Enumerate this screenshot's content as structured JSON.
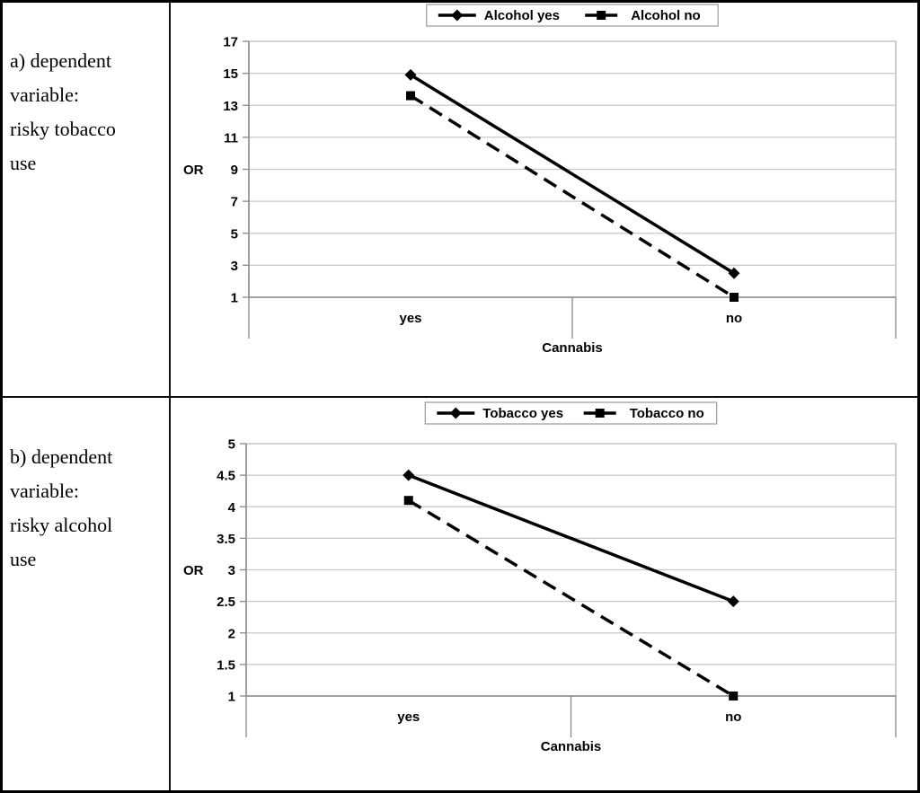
{
  "panels": [
    {
      "label": "a) dependent\nvariable:\nrisky tobacco\nuse"
    },
    {
      "label": "b) dependent\nvariable:\nrisky alcohol\nuse"
    }
  ],
  "colors": {
    "series_line": "#000000",
    "gridline": "#c8c8c8",
    "axis": "#888888",
    "frame": "#b4b4b4",
    "legend_border": "#999999",
    "text": "#000000"
  },
  "chart_data": [
    {
      "type": "line",
      "title": "",
      "categories": [
        "yes",
        "no"
      ],
      "xlabel": "Cannabis",
      "ylabel": "OR",
      "ylim": [
        1,
        17
      ],
      "yticks": [
        1,
        3,
        5,
        7,
        9,
        11,
        13,
        15,
        17
      ],
      "grid": true,
      "legend_position": "top",
      "series": [
        {
          "name": "Alcohol yes",
          "values": [
            14.9,
            2.5
          ],
          "line": "solid",
          "marker": "diamond"
        },
        {
          "name": "Alcohol no",
          "values": [
            13.6,
            1.0
          ],
          "line": "dashed",
          "marker": "square"
        }
      ]
    },
    {
      "type": "line",
      "title": "",
      "categories": [
        "yes",
        "no"
      ],
      "xlabel": "Cannabis",
      "ylabel": "OR",
      "ylim": [
        1,
        5
      ],
      "yticks": [
        1,
        1.5,
        2,
        2.5,
        3,
        3.5,
        4,
        4.5,
        5
      ],
      "grid": true,
      "legend_position": "top",
      "series": [
        {
          "name": "Tobacco yes",
          "values": [
            4.5,
            2.5
          ],
          "line": "solid",
          "marker": "diamond"
        },
        {
          "name": "Tobacco no",
          "values": [
            4.1,
            1.0
          ],
          "line": "dashed",
          "marker": "square"
        }
      ]
    }
  ]
}
